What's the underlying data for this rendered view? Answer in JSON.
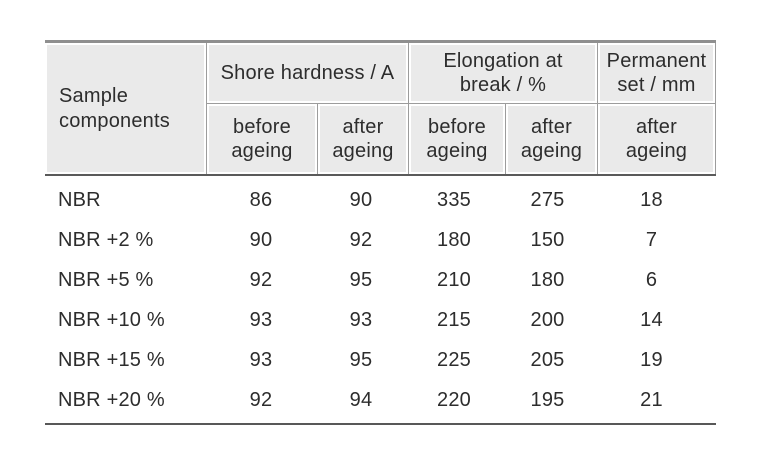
{
  "table": {
    "header": {
      "sample": "Sample\ncomponents",
      "shore": "Shore hardness / A",
      "elongation": "Elongation at\nbreak / %",
      "permanent": "Permanent\nset / mm",
      "sub": [
        "before\nageing",
        "after\nageing",
        "before\nageing",
        "after\nageing",
        "after\nageing"
      ]
    },
    "rows": [
      {
        "label": "NBR",
        "values": [
          "86",
          "90",
          "335",
          "275",
          "18"
        ]
      },
      {
        "label": "NBR +2 %",
        "values": [
          "90",
          "92",
          "180",
          "150",
          "7"
        ]
      },
      {
        "label": "NBR +5 %",
        "values": [
          "92",
          "95",
          "210",
          "180",
          "6"
        ]
      },
      {
        "label": "NBR +10 %",
        "values": [
          "93",
          "93",
          "215",
          "200",
          "14"
        ]
      },
      {
        "label": "NBR +15 %",
        "values": [
          "93",
          "95",
          "225",
          "205",
          "19"
        ]
      },
      {
        "label": "NBR +20 %",
        "values": [
          "92",
          "94",
          "220",
          "195",
          "21"
        ]
      }
    ],
    "colors": {
      "header_bg": "#eaeaea",
      "rule_thin": "#9c9c9c",
      "rule_top": "#8f8f8f",
      "rule_heavy": "#5a5a5a",
      "text": "#2d2d2d"
    }
  }
}
